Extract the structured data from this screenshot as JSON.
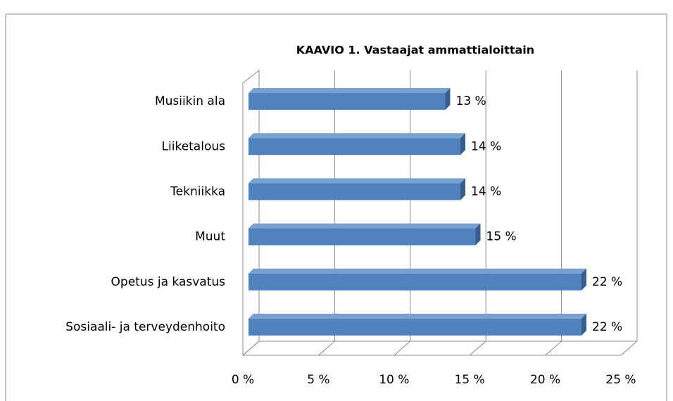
{
  "chart_data": {
    "type": "bar",
    "orientation": "horizontal",
    "title": "KAAVIO 1. Vastaajat  ammattialoittain",
    "categories": [
      "Musiikin ala",
      "Liiketalous",
      "Tekniikka",
      "Muut",
      "Opetus ja kasvatus",
      "Sosiaali- ja terveydenhoito"
    ],
    "values": [
      13,
      14,
      14,
      15,
      22,
      22
    ],
    "value_labels": [
      "13 %",
      "14 %",
      "14 %",
      "15 %",
      "22 %",
      "22 %"
    ],
    "color": "#4f81bd",
    "xlim": [
      0,
      25
    ],
    "xticks": [
      {
        "value": 0,
        "label": "0 %"
      },
      {
        "value": 5,
        "label": "5 %"
      },
      {
        "value": 10,
        "label": "10 %"
      },
      {
        "value": 15,
        "label": "15 %"
      },
      {
        "value": 20,
        "label": "20 %"
      },
      {
        "value": 25,
        "label": "25 %"
      }
    ],
    "grid": true
  }
}
